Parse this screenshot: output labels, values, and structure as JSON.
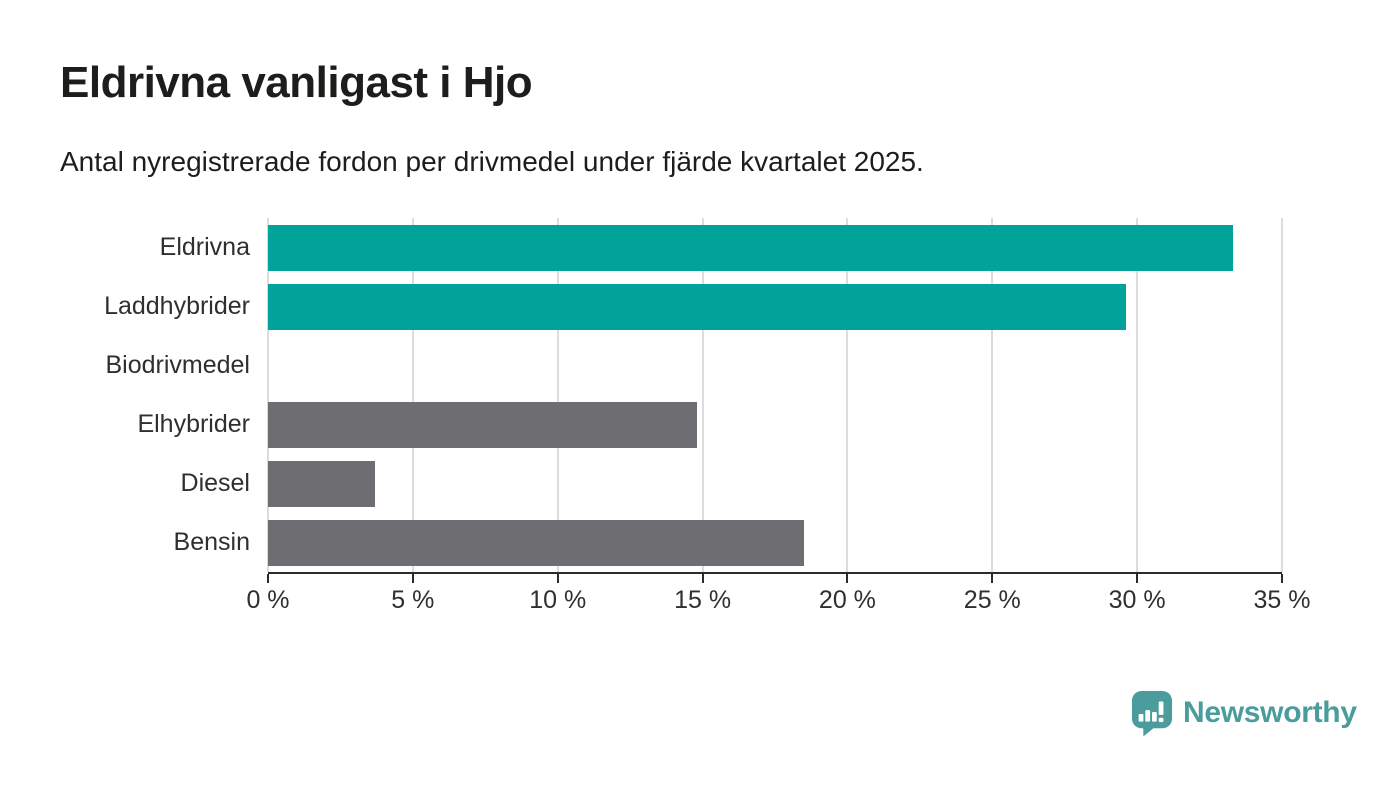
{
  "header": {
    "title": "Eldrivna vanligast i Hjo",
    "subtitle": "Antal nyregistrerade fordon per drivmedel under fjärde kvartalet 2025."
  },
  "chart_data": {
    "type": "bar",
    "orientation": "horizontal",
    "categories": [
      "Eldrivna",
      "Laddhybrider",
      "Biodrivmedel",
      "Elhybrider",
      "Diesel",
      "Bensin"
    ],
    "values": [
      33.3,
      29.6,
      0,
      14.8,
      3.7,
      18.5
    ],
    "unit": "%",
    "xlim": [
      0,
      35
    ],
    "ticks": [
      0,
      5,
      10,
      15,
      20,
      25,
      30,
      35
    ],
    "tick_labels": [
      "0 %",
      "5 %",
      "10 %",
      "15 %",
      "20 %",
      "25 %",
      "30 %",
      "35 %"
    ],
    "bar_colors": [
      "#00a29a",
      "#00a29a",
      "#6e6e72",
      "#6e6e72",
      "#6e6e72",
      "#6e6e72"
    ],
    "grid": true,
    "legend_position": "none",
    "title": "Eldrivna vanligast i Hjo",
    "xlabel": "",
    "ylabel": ""
  },
  "colors": {
    "highlight": "#00a29a",
    "neutral": "#6e6e72",
    "gridline": "#dcdcdc",
    "axis_line": "#2b2b2b",
    "text": "#1d1d1b",
    "brand": "#4a9d9c"
  },
  "footer": {
    "brand": "Newsworthy",
    "logo_icon": "bar-chart-speech-bubble"
  }
}
